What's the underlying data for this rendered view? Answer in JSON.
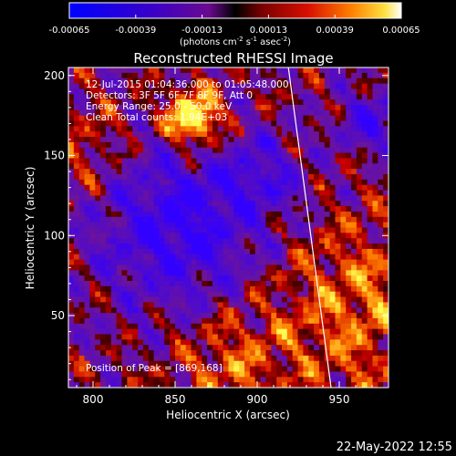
{
  "colorbar": {
    "ticks": [
      "-0.00065",
      "-0.00039",
      "-0.00013",
      "0.00013",
      "0.00039",
      "0.00065"
    ],
    "units": "(photons cm",
    "units_sup1": "-2",
    "units_mid": " s",
    "units_sup2": "-1",
    "units_end": " asec",
    "units_sup3": "-2",
    "units_close": ")"
  },
  "plot": {
    "title": "Reconstructed RHESSI Image",
    "info_lines": [
      "12-Jul-2015 01:04:36.000 to 01:05:48.000",
      "Detectors: 3F 5F 6F 7F 8F 9F, Att 0",
      "Energy Range: 25.0 - 50.0 keV",
      "Clean     Total counts: 1.94E+03"
    ],
    "peak_label": "Position of Peak = [869,168]",
    "xlabel": "Heliocentric X (arcsec)",
    "ylabel": "Heliocentric Y (arcsec)",
    "x_ticks": [
      "800",
      "850",
      "900",
      "950"
    ],
    "y_ticks": [
      "50",
      "100",
      "150",
      "200"
    ],
    "xlim": [
      785,
      980
    ],
    "ylim": [
      5,
      205
    ],
    "limb_line": {
      "x": [
        919,
        945
      ],
      "y": [
        205,
        5
      ]
    }
  },
  "footer": {
    "date": "22-May-2022 12:55"
  }
}
